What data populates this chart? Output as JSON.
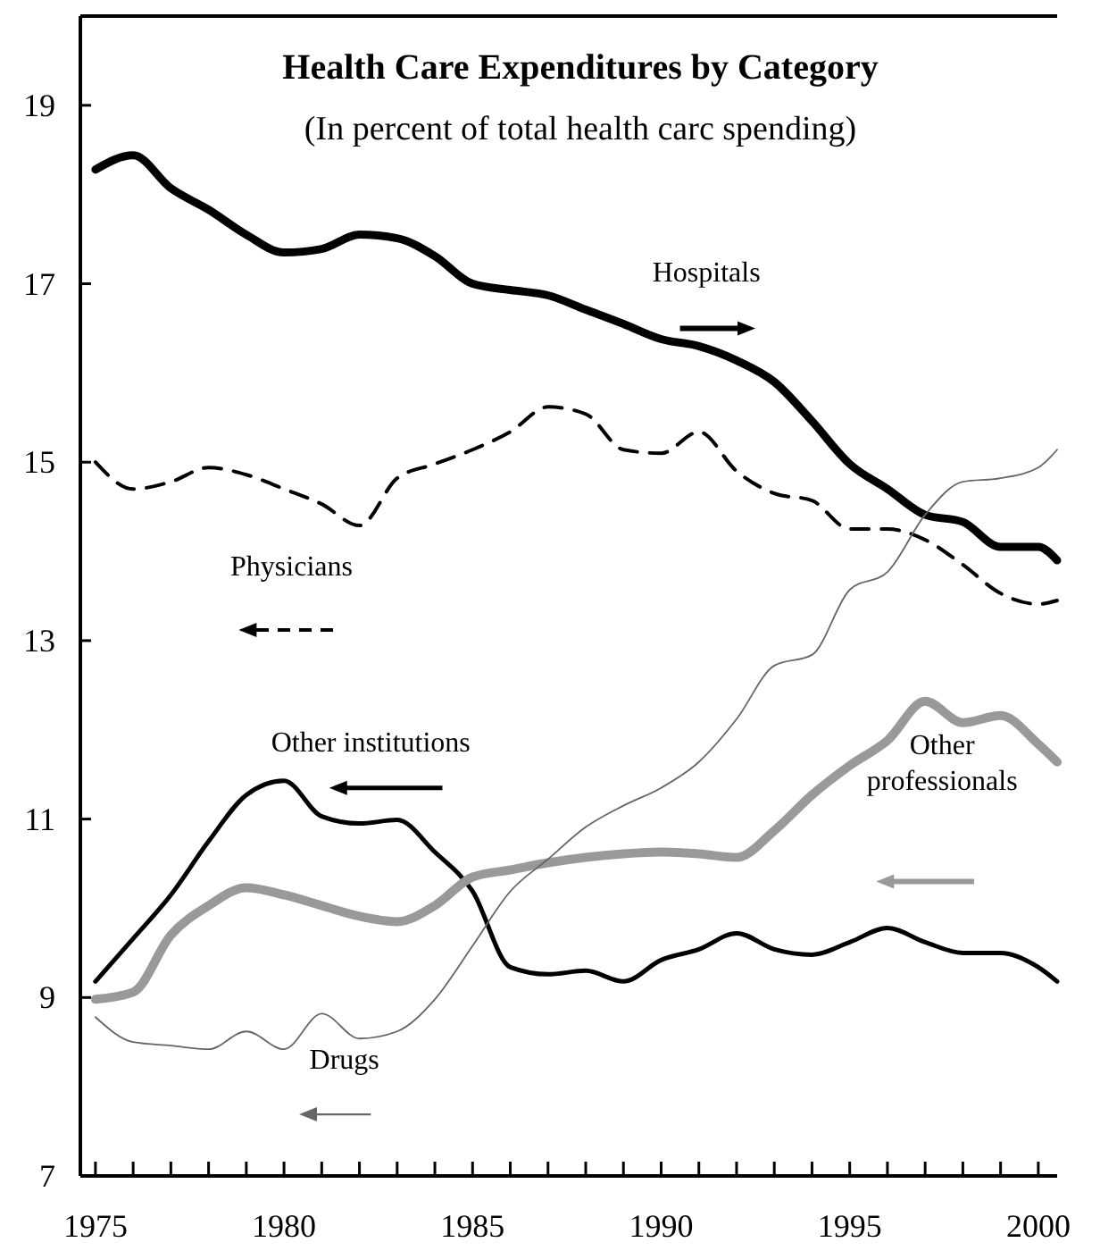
{
  "chart_data": {
    "type": "line",
    "title": "Health Care Expenditures by Category",
    "subtitle": "(In percent of total health carc spending)",
    "x": [
      1975,
      1976,
      1977,
      1978,
      1979,
      1980,
      1981,
      1982,
      1983,
      1984,
      1985,
      1986,
      1987,
      1988,
      1989,
      1990,
      1991,
      1992,
      1993,
      1994,
      1995,
      1996,
      1997,
      1998,
      1999,
      2000,
      2000.5
    ],
    "series": [
      {
        "name": "Hospitals",
        "color": "#000000",
        "values": [
          18.28,
          18.44,
          18.07,
          17.83,
          17.55,
          17.35,
          17.39,
          17.55,
          17.51,
          17.31,
          17.0,
          16.93,
          16.87,
          16.71,
          16.55,
          16.38,
          16.3,
          16.14,
          15.9,
          15.46,
          14.98,
          14.7,
          14.41,
          14.33,
          14.05,
          14.05,
          13.9
        ]
      },
      {
        "name": "Physicians",
        "color": "#000000",
        "line_style": "dashed",
        "values": [
          15.0,
          14.7,
          14.78,
          14.94,
          14.86,
          14.7,
          14.53,
          14.29,
          14.82,
          14.98,
          15.14,
          15.34,
          15.62,
          15.54,
          15.14,
          15.1,
          15.34,
          14.9,
          14.65,
          14.57,
          14.25,
          14.25,
          14.13,
          13.85,
          13.53,
          13.41,
          13.45
        ]
      },
      {
        "name": "Other institutions",
        "color": "#000000",
        "values": [
          9.18,
          9.66,
          10.15,
          10.75,
          11.27,
          11.43,
          11.03,
          10.95,
          10.99,
          10.63,
          10.19,
          9.34,
          9.26,
          9.3,
          9.18,
          9.42,
          9.54,
          9.72,
          9.54,
          9.48,
          9.62,
          9.78,
          9.62,
          9.5,
          9.5,
          9.34,
          9.18
        ]
      },
      {
        "name": "Other professionals",
        "color": "#999999",
        "values": [
          8.98,
          9.06,
          9.7,
          10.03,
          10.23,
          10.15,
          10.03,
          9.91,
          9.85,
          10.03,
          10.35,
          10.43,
          10.51,
          10.57,
          10.61,
          10.63,
          10.61,
          10.57,
          10.87,
          11.27,
          11.6,
          11.88,
          12.32,
          12.08,
          12.16,
          11.84,
          11.64
        ]
      },
      {
        "name": "Drugs",
        "color": "#666666",
        "values": [
          8.78,
          8.5,
          8.46,
          8.42,
          8.62,
          8.42,
          8.82,
          8.54,
          8.62,
          8.98,
          9.58,
          10.19,
          10.55,
          10.91,
          11.15,
          11.35,
          11.64,
          12.12,
          12.72,
          12.84,
          13.57,
          13.77,
          14.41,
          14.78,
          14.82,
          14.94,
          15.14
        ]
      }
    ],
    "xlim": [
      1974.6,
      2000.5
    ],
    "xticks": [
      1975,
      {
        "value": 1976,
        "label": null
      },
      {
        "value": 1977,
        "label": null
      },
      {
        "value": 1978,
        "label": null
      },
      {
        "value": 1979,
        "label": null
      },
      1980,
      {
        "value": 1981,
        "label": null
      },
      {
        "value": 1982,
        "label": null
      },
      {
        "value": 1983,
        "label": null
      },
      {
        "value": 1984,
        "label": null
      },
      1985,
      {
        "value": 1986,
        "label": null
      },
      {
        "value": 1987,
        "label": null
      },
      {
        "value": 1988,
        "label": null
      },
      {
        "value": 1989,
        "label": null
      },
      1990,
      {
        "value": 1991,
        "label": null
      },
      {
        "value": 1992,
        "label": null
      },
      {
        "value": 1993,
        "label": null
      },
      {
        "value": 1994,
        "label": null
      },
      1995,
      {
        "value": 1996,
        "label": null
      },
      {
        "value": 1997,
        "label": null
      },
      {
        "value": 1998,
        "label": null
      },
      {
        "value": 1999,
        "label": null
      },
      2000
    ],
    "ylim": [
      7,
      20
    ],
    "yticks": [
      7,
      9,
      11,
      13,
      15,
      17,
      19
    ],
    "grid": false,
    "marker": "none"
  }
}
